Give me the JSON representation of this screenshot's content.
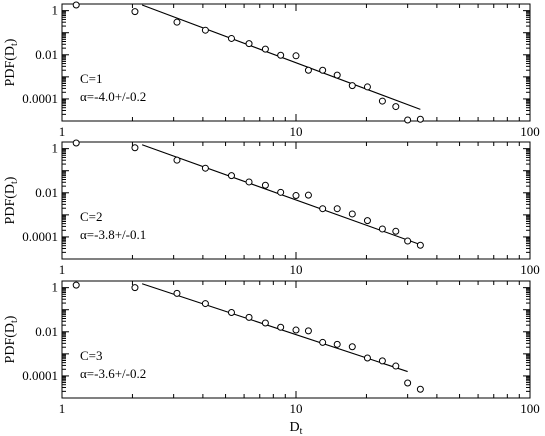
{
  "figure": {
    "xlabel": "D",
    "xlabel_sub": "t",
    "ylabel": "PDF(D",
    "ylabel_sub": "t",
    "ylabel_close": ")"
  },
  "chart_data": [
    {
      "type": "scatter",
      "log_x": true,
      "log_y": true,
      "xlim": [
        1,
        100
      ],
      "ylim": [
        1e-05,
        2
      ],
      "x_ticks": [
        "1",
        "10",
        "100"
      ],
      "y_ticks": [
        "1",
        "0.01",
        "0.0001"
      ],
      "annotation": [
        "C=1",
        "α=-4.0+/-0.2"
      ],
      "points": [
        [
          1.15,
          1.9
        ],
        [
          2.05,
          0.9
        ],
        [
          3.1,
          0.3
        ],
        [
          4.1,
          0.13
        ],
        [
          5.3,
          0.055
        ],
        [
          6.3,
          0.032
        ],
        [
          7.4,
          0.018
        ],
        [
          8.6,
          0.0095
        ],
        [
          10.0,
          0.009
        ],
        [
          11.3,
          0.002
        ],
        [
          13.0,
          0.002
        ],
        [
          15.0,
          0.0012
        ],
        [
          17.4,
          0.0004
        ],
        [
          20.2,
          0.00035
        ],
        [
          23.4,
          8e-05
        ],
        [
          26.7,
          4.5e-05
        ],
        [
          30.0,
          1e-05
        ],
        [
          34.0,
          1.2e-05
        ]
      ],
      "fit": {
        "x": [
          2.2,
          34.0
        ],
        "y": [
          1.8,
          3.35e-05
        ]
      }
    },
    {
      "type": "scatter",
      "log_x": true,
      "log_y": true,
      "xlim": [
        1,
        100
      ],
      "ylim": [
        1e-05,
        2
      ],
      "x_ticks": [
        "1",
        "10",
        "100"
      ],
      "y_ticks": [
        "1",
        "0.01",
        "0.0001"
      ],
      "annotation": [
        "C=2",
        "α=-3.8+/-0.1"
      ],
      "points": [
        [
          1.15,
          1.9
        ],
        [
          2.05,
          1.1
        ],
        [
          3.1,
          0.3
        ],
        [
          4.1,
          0.13
        ],
        [
          5.3,
          0.06
        ],
        [
          6.3,
          0.031
        ],
        [
          7.4,
          0.022
        ],
        [
          8.6,
          0.0105
        ],
        [
          10.0,
          0.0075
        ],
        [
          11.3,
          0.0078
        ],
        [
          13.0,
          0.0019
        ],
        [
          15.0,
          0.0019
        ],
        [
          17.4,
          0.0011
        ],
        [
          20.2,
          0.00055
        ],
        [
          23.4,
          0.00023
        ],
        [
          26.7,
          0.00018
        ],
        [
          30.0,
          6.5e-05
        ],
        [
          34.0,
          4.2e-05
        ]
      ],
      "fit": {
        "x": [
          2.2,
          34.0
        ],
        "y": [
          1.5,
          4.5e-05
        ]
      }
    },
    {
      "type": "scatter",
      "log_x": true,
      "log_y": true,
      "xlim": [
        1,
        100
      ],
      "ylim": [
        1e-05,
        2
      ],
      "x_ticks": [
        "1",
        "10",
        "100"
      ],
      "y_ticks": [
        "1",
        "0.01",
        "0.0001"
      ],
      "annotation": [
        "C=3",
        "α=-3.6+/-0.2"
      ],
      "points": [
        [
          1.15,
          1.3
        ],
        [
          2.05,
          1.0
        ],
        [
          3.1,
          0.55
        ],
        [
          4.1,
          0.19
        ],
        [
          5.3,
          0.075
        ],
        [
          6.3,
          0.045
        ],
        [
          7.4,
          0.025
        ],
        [
          8.6,
          0.016
        ],
        [
          10.0,
          0.012
        ],
        [
          11.3,
          0.011
        ],
        [
          13.0,
          0.0033
        ],
        [
          15.0,
          0.0027
        ],
        [
          17.4,
          0.0021
        ],
        [
          20.2,
          0.00065
        ],
        [
          23.4,
          0.00048
        ],
        [
          26.7,
          0.00028
        ],
        [
          30.0,
          4.8e-05
        ],
        [
          34.0,
          2.5e-05
        ]
      ],
      "fit": {
        "x": [
          2.2,
          30.0
        ],
        "y": [
          1.5,
          0.000158
        ]
      }
    }
  ]
}
